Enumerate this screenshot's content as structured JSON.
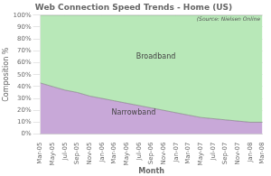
{
  "chart_data": {
    "type": "area",
    "title": "Web Connection Speed Trends - Home (US)",
    "xlabel": "Month",
    "ylabel": "Composition %",
    "categories": [
      "Mar-05",
      "May-05",
      "Jul-05",
      "Sep-05",
      "Nov-05",
      "Jan-06",
      "Mar-06",
      "May-06",
      "Jul-06",
      "Sep-06",
      "Nov-06",
      "Jan-07",
      "Mar-07",
      "May-07",
      "Jul-07",
      "Sep-07",
      "Nov-07",
      "Jan-08",
      "Mar-08"
    ],
    "series": [
      {
        "name": "Narrowband",
        "color": "#c8a8d8",
        "values": [
          43,
          40,
          37,
          35,
          32,
          30,
          28,
          26,
          24,
          22,
          20,
          18,
          16,
          14,
          13,
          12,
          11,
          10,
          10
        ]
      },
      {
        "name": "Broadband",
        "color": "#b8e8b8",
        "values": [
          57,
          60,
          63,
          65,
          68,
          70,
          72,
          74,
          76,
          78,
          80,
          82,
          84,
          86,
          87,
          88,
          89,
          90,
          90
        ]
      }
    ],
    "stacked": true,
    "ylim": [
      0,
      100
    ],
    "yticks": [
      {
        "value": 0,
        "label": "0%"
      },
      {
        "value": 10,
        "label": "10%"
      },
      {
        "value": 20,
        "label": "20%"
      },
      {
        "value": 30,
        "label": "30%"
      },
      {
        "value": 40,
        "label": "40%"
      },
      {
        "value": 50,
        "label": "50%"
      },
      {
        "value": 60,
        "label": "60%"
      },
      {
        "value": 70,
        "label": "70%"
      },
      {
        "value": 80,
        "label": "80%"
      },
      {
        "value": 90,
        "label": "90%"
      },
      {
        "value": 100,
        "label": "100%"
      }
    ],
    "grid": "y",
    "annotations": [
      "(Source: Nielsen Online"
    ]
  }
}
